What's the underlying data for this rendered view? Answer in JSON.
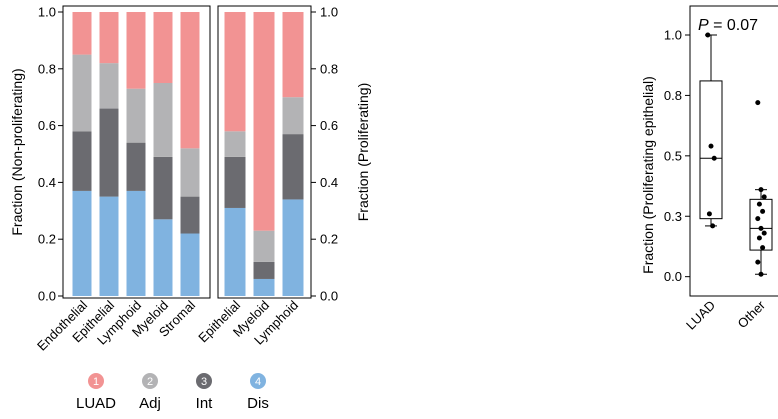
{
  "colors": {
    "LUAD": "#f29393",
    "Adj": "#b3b3b5",
    "Int": "#6b6b70",
    "Dis": "#80b3e0"
  },
  "legend": [
    {
      "num": "1",
      "label": "LUAD",
      "key": "LUAD"
    },
    {
      "num": "2",
      "label": "Adj",
      "key": "Adj"
    },
    {
      "num": "3",
      "label": "Int",
      "key": "Int"
    },
    {
      "num": "4",
      "label": "Dis",
      "key": "Dis"
    }
  ],
  "chart_data": [
    {
      "type": "bar",
      "stacked": true,
      "ylabel": "Fraction (Non-proliferating)",
      "ylim": [
        0,
        1
      ],
      "yticks": [
        "0.0",
        "0.2",
        "0.4",
        "0.6",
        "0.8",
        "1.0"
      ],
      "categories": [
        "Endothelial",
        "Epithelial",
        "Lymphoid",
        "Myeloid",
        "Stromal"
      ],
      "series": [
        {
          "name": "Dis",
          "values": [
            0.37,
            0.35,
            0.37,
            0.27,
            0.22
          ]
        },
        {
          "name": "Int",
          "values": [
            0.21,
            0.31,
            0.17,
            0.22,
            0.13
          ]
        },
        {
          "name": "Adj",
          "values": [
            0.27,
            0.16,
            0.19,
            0.26,
            0.17
          ]
        },
        {
          "name": "LUAD",
          "values": [
            0.15,
            0.18,
            0.27,
            0.25,
            0.48
          ]
        }
      ]
    },
    {
      "type": "bar",
      "stacked": true,
      "ylabel": "Fraction (Proliferating)",
      "ylim": [
        0,
        1
      ],
      "yticks": [
        "0.0",
        "0.2",
        "0.4",
        "0.6",
        "0.8",
        "1.0"
      ],
      "categories": [
        "Epithelial",
        "Myeloid",
        "Lymphoid"
      ],
      "series": [
        {
          "name": "Dis",
          "values": [
            0.31,
            0.06,
            0.34
          ]
        },
        {
          "name": "Int",
          "values": [
            0.18,
            0.06,
            0.23
          ]
        },
        {
          "name": "Adj",
          "values": [
            0.09,
            0.11,
            0.13
          ]
        },
        {
          "name": "LUAD",
          "values": [
            0.42,
            0.77,
            0.3
          ]
        }
      ]
    },
    {
      "type": "box",
      "ylabel": "Fraction (Proliferating epithelial)",
      "ylim": [
        -0.08,
        1.12
      ],
      "yticks": [
        0.0,
        0.25,
        0.5,
        0.75,
        1.0
      ],
      "ytick_labels": [
        "0.0",
        "0.3",
        "0.5",
        "0.8",
        "1.0"
      ],
      "annotation": {
        "prefix": "P",
        "text": " = 0.07"
      },
      "categories": [
        "LUAD",
        "Other"
      ],
      "boxes": [
        {
          "name": "LUAD",
          "min": 0.21,
          "q1": 0.24,
          "median": 0.49,
          "q3": 0.81,
          "max": 1.0,
          "points": [
            1.0,
            0.54,
            0.49,
            0.26,
            0.21
          ]
        },
        {
          "name": "Other",
          "min": 0.01,
          "q1": 0.11,
          "median": 0.2,
          "q3": 0.32,
          "max": 0.36,
          "points": [
            0.72,
            0.36,
            0.33,
            0.3,
            0.27,
            0.24,
            0.2,
            0.18,
            0.16,
            0.12,
            0.06,
            0.01
          ]
        }
      ]
    }
  ]
}
